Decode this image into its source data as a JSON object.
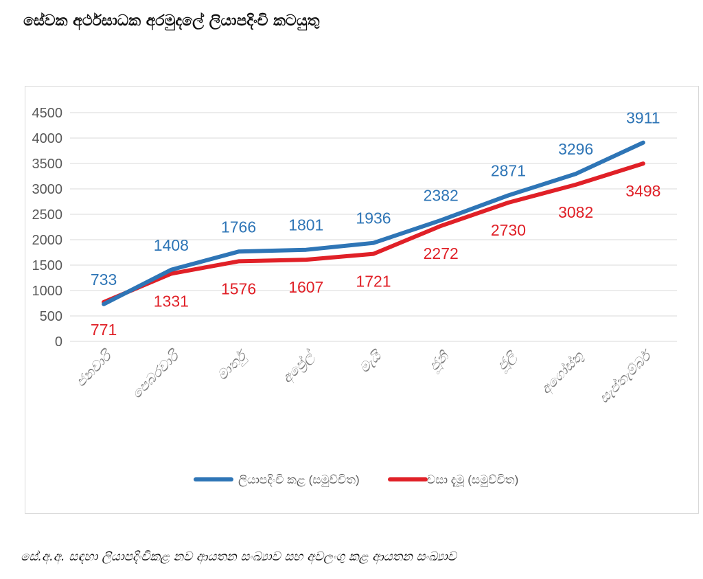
{
  "title": "සේවක අර්ථසාධක අරමුදලේ ලියාපදිංචි කටයුතු",
  "caption": "සේ.අ.අ. සඳහා ලියාපදිංචිකළ නව ආයතන සංඛ්‍යාව සහ අවලංගු කළ ආයතන සංඛ්‍යාව",
  "colors": {
    "blue": "#2e75b6",
    "red": "#e02027",
    "grid": "#d9d9d9",
    "tick": "#595959",
    "axis_label": "#7f7f7f"
  },
  "chart_data": {
    "type": "line",
    "title": "",
    "xlabel": "",
    "ylabel": "",
    "categories": [
      "ජනවාරි",
      "පෙබරවාරි",
      "මාර්තු",
      "අප්‍රේල්",
      "මැයි",
      "ජූනි",
      "ජූලි",
      "අගෝස්තු",
      "සැප්තැම්බර්"
    ],
    "yticks": [
      "0",
      "500",
      "1000",
      "1500",
      "2000",
      "2500",
      "3000",
      "3500",
      "4000",
      "4500"
    ],
    "ylim": [
      0,
      4500
    ],
    "grid": true,
    "legend_position": "bottom",
    "series": [
      {
        "name": "ලියාපදිංචි කළ (සමුච්චිත)",
        "color": "#2e75b6",
        "values": [
          733,
          1408,
          1766,
          1801,
          1936,
          2382,
          2871,
          3296,
          3911
        ],
        "labels": [
          "733",
          "1408",
          "1766",
          "1801",
          "1936",
          "2382",
          "2871",
          "3296",
          "3911"
        ]
      },
      {
        "name": "වසා දැමූ (සමුච්චිත)",
        "color": "#e02027",
        "values": [
          771,
          1331,
          1576,
          1607,
          1721,
          2272,
          2730,
          3082,
          3498
        ],
        "labels": [
          "771",
          "1331",
          "1576",
          "1607",
          "1721",
          "2272",
          "2730",
          "3082",
          "3498"
        ]
      }
    ]
  }
}
